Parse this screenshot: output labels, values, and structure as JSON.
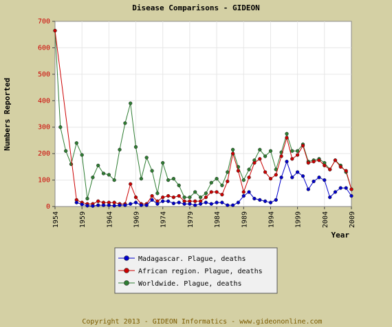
{
  "chart_data": {
    "type": "line",
    "title": "Disease Comparisons - GIDEON",
    "xlabel": "Year",
    "ylabel": "Numbers Reported",
    "xlim": [
      1954,
      2009
    ],
    "ylim": [
      0,
      700
    ],
    "yticks": [
      0,
      100,
      200,
      300,
      400,
      500,
      600,
      700
    ],
    "xticks": [
      1954,
      1959,
      1964,
      1969,
      1974,
      1979,
      1984,
      1989,
      1994,
      1999,
      2004,
      2009
    ],
    "grid": true,
    "legend_position": "bottom",
    "series": [
      {
        "name": "Madagascar. Plague, deaths",
        "color": "#0000cc",
        "x": [
          1958,
          1959,
          1960,
          1961,
          1962,
          1963,
          1964,
          1965,
          1966,
          1967,
          1968,
          1969,
          1970,
          1971,
          1972,
          1973,
          1974,
          1975,
          1976,
          1977,
          1978,
          1979,
          1980,
          1981,
          1982,
          1983,
          1984,
          1985,
          1986,
          1987,
          1988,
          1989,
          1990,
          1991,
          1992,
          1993,
          1994,
          1995,
          1996,
          1997,
          1998,
          1999,
          2000,
          2001,
          2002,
          2003,
          2004,
          2005,
          2006,
          2007,
          2008,
          2009
        ],
        "y": [
          15,
          8,
          3,
          2,
          5,
          5,
          5,
          3,
          5,
          5,
          10,
          15,
          5,
          5,
          25,
          10,
          20,
          20,
          12,
          15,
          10,
          10,
          5,
          10,
          15,
          10,
          15,
          15,
          5,
          5,
          15,
          40,
          55,
          30,
          25,
          20,
          15,
          25,
          110,
          170,
          110,
          130,
          115,
          65,
          95,
          110,
          100,
          35,
          55,
          70,
          70,
          40
        ]
      },
      {
        "name": "African region. Plague, deaths",
        "color": "#cc0000",
        "x": [
          1954,
          1958,
          1959,
          1960,
          1961,
          1962,
          1963,
          1964,
          1965,
          1966,
          1967,
          1968,
          1969,
          1970,
          1971,
          1972,
          1973,
          1974,
          1975,
          1976,
          1977,
          1978,
          1979,
          1980,
          1981,
          1982,
          1983,
          1984,
          1985,
          1986,
          1987,
          1988,
          1989,
          1990,
          1991,
          1992,
          1993,
          1994,
          1995,
          1996,
          1997,
          1998,
          1999,
          2000,
          2001,
          2002,
          2003,
          2004,
          2005,
          2006,
          2007,
          2008,
          2009
        ],
        "y": [
          665,
          25,
          15,
          10,
          10,
          20,
          15,
          15,
          15,
          10,
          10,
          85,
          35,
          10,
          10,
          40,
          20,
          35,
          40,
          35,
          40,
          20,
          20,
          20,
          20,
          35,
          55,
          55,
          45,
          95,
          200,
          135,
          55,
          110,
          165,
          180,
          130,
          105,
          120,
          190,
          260,
          180,
          195,
          230,
          165,
          170,
          175,
          155,
          140,
          175,
          150,
          135,
          65
        ]
      },
      {
        "name": "Worldwide. Plague, deaths",
        "color": "#2e7d32",
        "x": [
          1954,
          1955,
          1956,
          1957,
          1958,
          1959,
          1960,
          1961,
          1962,
          1963,
          1964,
          1965,
          1966,
          1967,
          1968,
          1969,
          1970,
          1971,
          1972,
          1973,
          1974,
          1975,
          1976,
          1977,
          1978,
          1979,
          1980,
          1981,
          1982,
          1983,
          1984,
          1985,
          1986,
          1987,
          1988,
          1989,
          1990,
          1991,
          1992,
          1993,
          1994,
          1995,
          1996,
          1997,
          1998,
          1999,
          2000,
          2001,
          2002,
          2003,
          2004,
          2005,
          2006,
          2007,
          2008,
          2009
        ],
        "y": [
          665,
          300,
          210,
          160,
          240,
          195,
          30,
          110,
          155,
          125,
          120,
          100,
          215,
          315,
          390,
          225,
          105,
          185,
          135,
          50,
          165,
          100,
          105,
          80,
          35,
          35,
          55,
          35,
          50,
          90,
          105,
          80,
          130,
          215,
          150,
          100,
          140,
          175,
          215,
          190,
          210,
          140,
          205,
          275,
          210,
          210,
          235,
          170,
          175,
          180,
          165,
          140,
          175,
          155,
          130,
          65
        ]
      }
    ]
  },
  "copyright": "Copyright 2013 - GIDEON Informatics - www.gideononline.com"
}
